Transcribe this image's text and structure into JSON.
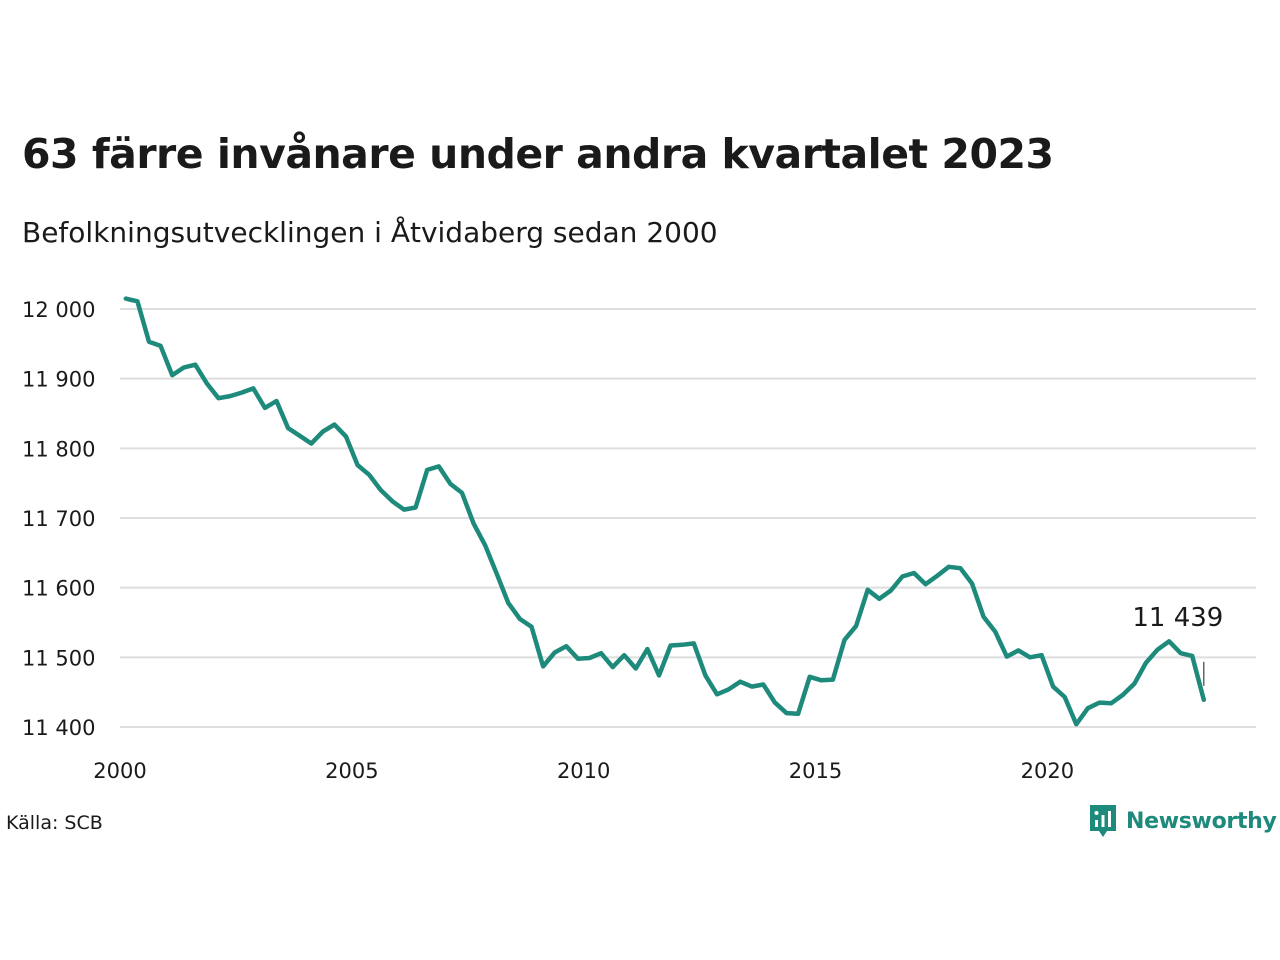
{
  "title": "63 färre invånare under andra kvartalet 2023",
  "subtitle": "Befolkningsutvecklingen i Åtvidaberg sedan 2000",
  "source": "Källa: SCB",
  "brand": "Newsworthy",
  "colors": {
    "line": "#1d8a7b",
    "grid": "#dedede",
    "text": "#1a1a1a",
    "brand": "#1d8a7b"
  },
  "chart_data": {
    "type": "line",
    "title": "63 färre invånare under andra kvartalet 2023",
    "xlabel": "",
    "ylabel": "",
    "grid": true,
    "xlim": [
      2000,
      2024.5
    ],
    "ylim": [
      11400,
      12000
    ],
    "x_ticks": [
      {
        "value": 2000,
        "label": "2000"
      },
      {
        "value": 2005,
        "label": "2005"
      },
      {
        "value": 2010,
        "label": "2010"
      },
      {
        "value": 2015,
        "label": "2015"
      },
      {
        "value": 2020,
        "label": "2020"
      }
    ],
    "y_ticks": [
      {
        "value": 12000,
        "label": "12 000"
      },
      {
        "value": 11900,
        "label": "11 900"
      },
      {
        "value": 11800,
        "label": "11 800"
      },
      {
        "value": 11700,
        "label": "11 700"
      },
      {
        "value": 11600,
        "label": "11 600"
      },
      {
        "value": 11500,
        "label": "11 500"
      },
      {
        "value": 11400,
        "label": "11 400"
      }
    ],
    "annotation": {
      "label": "11 439",
      "x": 2023.375,
      "y": 11439
    },
    "series": [
      {
        "x_start": 2000.125,
        "x_step": 0.25,
        "values": [
          12015,
          12011,
          11953,
          11947,
          11905,
          11916,
          11920,
          11893,
          11872,
          11875,
          11880,
          11886,
          11858,
          11868,
          11829,
          11818,
          11807,
          11824,
          11834,
          11817,
          11776,
          11762,
          11740,
          11724,
          11712,
          11715,
          11769,
          11774,
          11749,
          11736,
          11692,
          11661,
          11620,
          11578,
          11555,
          11544,
          11487,
          11507,
          11516,
          11498,
          11499,
          11506,
          11486,
          11503,
          11484,
          11512,
          11474,
          11517,
          11518,
          11520,
          11474,
          11447,
          11454,
          11465,
          11458,
          11461,
          11435,
          11420,
          11419,
          11472,
          11467,
          11468,
          11525,
          11545,
          11597,
          11584,
          11596,
          11616,
          11621,
          11605,
          11617,
          11630,
          11628,
          11606,
          11558,
          11537,
          11501,
          11510,
          11500,
          11503,
          11458,
          11443,
          11404,
          11427,
          11435,
          11434,
          11446,
          11462,
          11492,
          11511,
          11523,
          11506,
          11502,
          11439
        ]
      }
    ]
  }
}
